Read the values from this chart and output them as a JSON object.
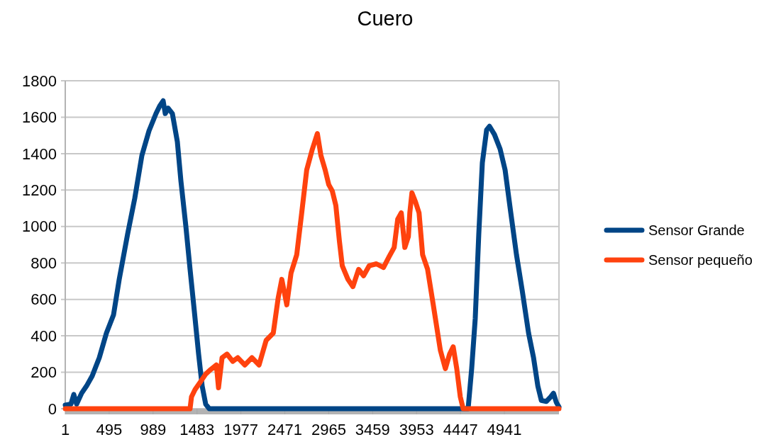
{
  "chart_data": {
    "type": "line",
    "title": "Cuero",
    "xlim": [
      1,
      5555
    ],
    "xticks": [
      1,
      495,
      989,
      1483,
      1977,
      2471,
      2965,
      3459,
      3953,
      4447,
      4941
    ],
    "ylim": [
      0,
      1800
    ],
    "yticks": [
      0,
      200,
      400,
      600,
      800,
      1000,
      1200,
      1400,
      1600,
      1800
    ],
    "grid": "y",
    "legend": "right",
    "marker": "none",
    "line_style": "solid",
    "series": [
      {
        "name": "Sensor Grande",
        "color": "#004586",
        "x": [
          1,
          65,
          97,
          129,
          185,
          241,
          304,
          384,
          464,
          544,
          608,
          703,
          783,
          863,
          943,
          1022,
          1062,
          1102,
          1126,
          1158,
          1206,
          1262,
          1302,
          1358,
          1405,
          1453,
          1501,
          1541,
          1581,
          1621,
          4533,
          4573,
          4613,
          4653,
          4693,
          4741,
          4773,
          4829,
          4893,
          4949,
          5013,
          5077,
          5141,
          5213,
          5269,
          5317,
          5357,
          5413,
          5453,
          5493,
          5525,
          5555
        ],
        "values": [
          20,
          25,
          78,
          25,
          85,
          125,
          180,
          280,
          415,
          515,
          710,
          960,
          1155,
          1390,
          1525,
          1620,
          1660,
          1690,
          1620,
          1650,
          1620,
          1465,
          1250,
          1000,
          765,
          535,
          300,
          125,
          25,
          0,
          0,
          220,
          495,
          960,
          1350,
          1530,
          1550,
          1505,
          1425,
          1310,
          1075,
          845,
          650,
          415,
          280,
          125,
          45,
          40,
          60,
          85,
          35,
          10
        ]
      },
      {
        "name": "Sensor pequeño",
        "color": "#ff420e",
        "x": [
          1,
          1405,
          1421,
          1461,
          1525,
          1581,
          1637,
          1701,
          1725,
          1765,
          1821,
          1885,
          1941,
          2021,
          2101,
          2181,
          2261,
          2341,
          2397,
          2437,
          2493,
          2541,
          2605,
          2661,
          2717,
          2781,
          2837,
          2877,
          2925,
          2965,
          3005,
          3045,
          3085,
          3117,
          3181,
          3237,
          3301,
          3357,
          3421,
          3501,
          3581,
          3645,
          3701,
          3741,
          3781,
          3821,
          3861,
          3877,
          3901,
          3941,
          3981,
          4021,
          4077,
          4141,
          4221,
          4277,
          4325,
          4365,
          4405,
          4445,
          4477,
          5555
        ],
        "values": [
          0,
          0,
          65,
          105,
          150,
          190,
          215,
          240,
          115,
          280,
          300,
          260,
          280,
          240,
          280,
          240,
          375,
          415,
          610,
          710,
          570,
          745,
          845,
          1075,
          1310,
          1425,
          1510,
          1390,
          1310,
          1230,
          1195,
          1115,
          920,
          785,
          710,
          670,
          765,
          730,
          785,
          795,
          775,
          835,
          885,
          1040,
          1075,
          885,
          945,
          1075,
          1185,
          1135,
          1075,
          845,
          765,
          570,
          320,
          220,
          300,
          340,
          220,
          65,
          0,
          0
        ]
      }
    ]
  }
}
